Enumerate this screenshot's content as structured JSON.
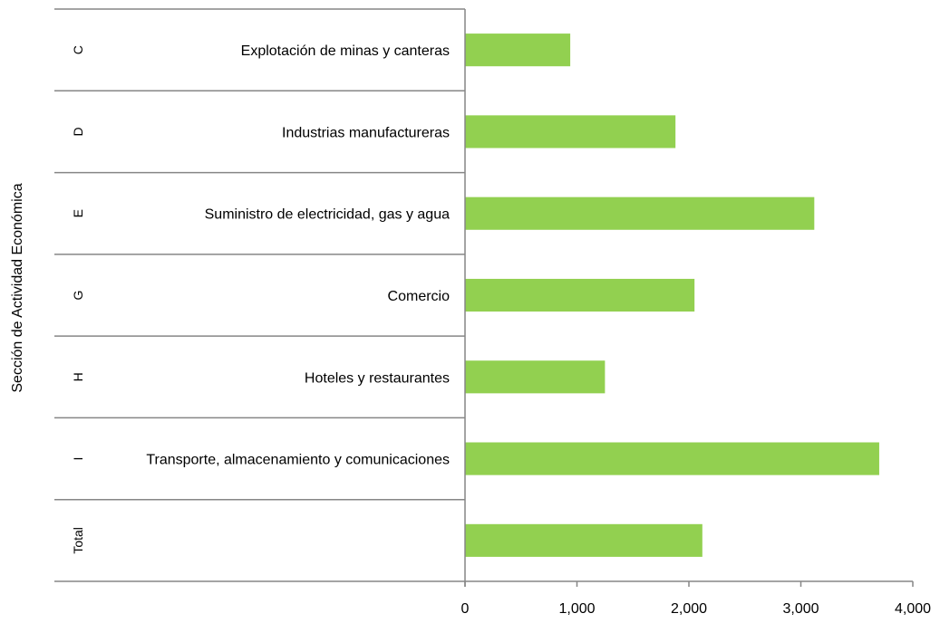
{
  "chart_data": {
    "type": "bar",
    "orientation": "horizontal",
    "title": "",
    "xlabel": "",
    "ylabel": "Sección de Actividad Económica",
    "xlim": [
      0,
      4000
    ],
    "x_ticks": [
      "0",
      "1,000",
      "2,000",
      "3,000",
      "4,000"
    ],
    "x_tick_values": [
      0,
      1000,
      2000,
      3000,
      4000
    ],
    "grid": false,
    "legend": "none",
    "bar_color": "#92d050",
    "axis_color": "#868686",
    "categories": [
      {
        "code": "C",
        "label": "Explotación de minas y canteras",
        "value": 940
      },
      {
        "code": "D",
        "label": "Industrias manufactureras",
        "value": 1880
      },
      {
        "code": "E",
        "label": "Suministro de electricidad, gas y agua",
        "value": 3120
      },
      {
        "code": "G",
        "label": "Comercio",
        "value": 2050
      },
      {
        "code": "H",
        "label": "Hoteles y restaurantes",
        "value": 1250
      },
      {
        "code": "I",
        "label": "Transporte, almacenamiento y comunicaciones",
        "value": 3700
      },
      {
        "code": "Total",
        "label": "",
        "value": 2120
      }
    ]
  }
}
